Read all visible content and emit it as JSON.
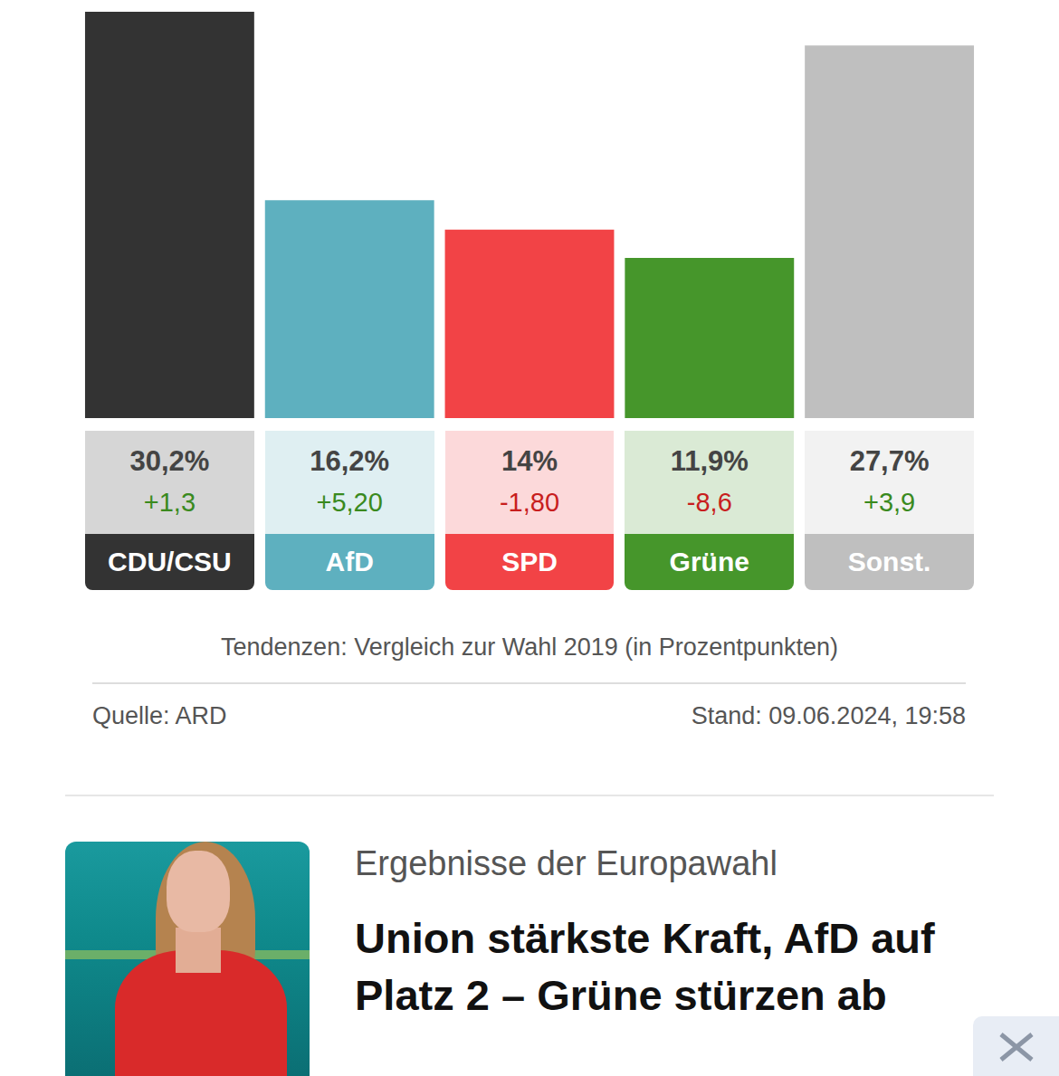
{
  "chart_data": {
    "type": "bar",
    "categories": [
      "CDU/CSU",
      "AfD",
      "SPD",
      "Grüne",
      "Sonst."
    ],
    "values": [
      30.2,
      16.2,
      14,
      11.9,
      27.7
    ],
    "value_labels": [
      "30,2%",
      "16,2%",
      "14%",
      "11,9%",
      "27,7%"
    ],
    "changes": [
      1.3,
      5.2,
      -1.8,
      -8.6,
      3.9
    ],
    "change_labels": [
      "+1,3",
      "+5,20",
      "-1,80",
      "-8,6",
      "+3,9"
    ],
    "colors": [
      "#333333",
      "#5eb0bf",
      "#f24346",
      "#46962b",
      "#bfbfbf"
    ],
    "ylim": [
      0,
      30.2
    ],
    "grid": false,
    "tick_labels": false,
    "caption": "Tendenzen: Vergleich zur Wahl 2019 (in Prozentpunkten)",
    "source": "Quelle: ARD",
    "date": "Stand: 09.06.2024, 19:58"
  },
  "teaser": {
    "kicker": "Ergebnisse der Europawahl",
    "headline": "Union stärkste Kraft, AfD auf Platz 2 – Grüne stürzen ab"
  }
}
